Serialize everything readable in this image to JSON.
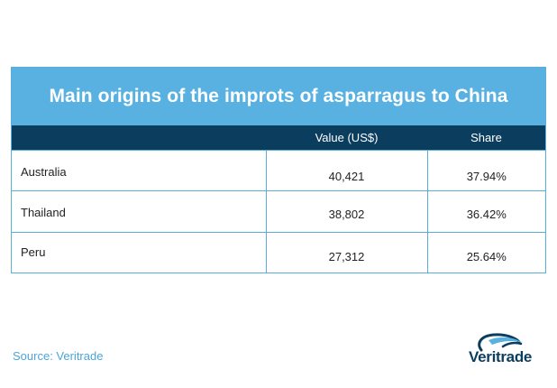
{
  "table": {
    "title": "Main origins of the improts of asparragus to China",
    "headers": [
      "",
      "Value (US$)",
      "Share"
    ],
    "rows": [
      {
        "origin": "Australia",
        "value": "40,421",
        "share": "37.94%"
      },
      {
        "origin": "Thailand",
        "value": "38,802",
        "share": "36.42%"
      },
      {
        "origin": "Peru",
        "value": "27,312",
        "share": "25.64%"
      }
    ]
  },
  "source": "Source: Veritrade",
  "logo": {
    "text": "Veritrade",
    "icon": "globe-swoosh-icon",
    "colors": {
      "primary": "#0b3d5f",
      "accent": "#58b1e0"
    }
  },
  "colors": {
    "title_bar": "#58b1e0",
    "header_bar": "#0b3d5f",
    "border": "#5aaed8",
    "source_text": "#4aa6d8"
  }
}
